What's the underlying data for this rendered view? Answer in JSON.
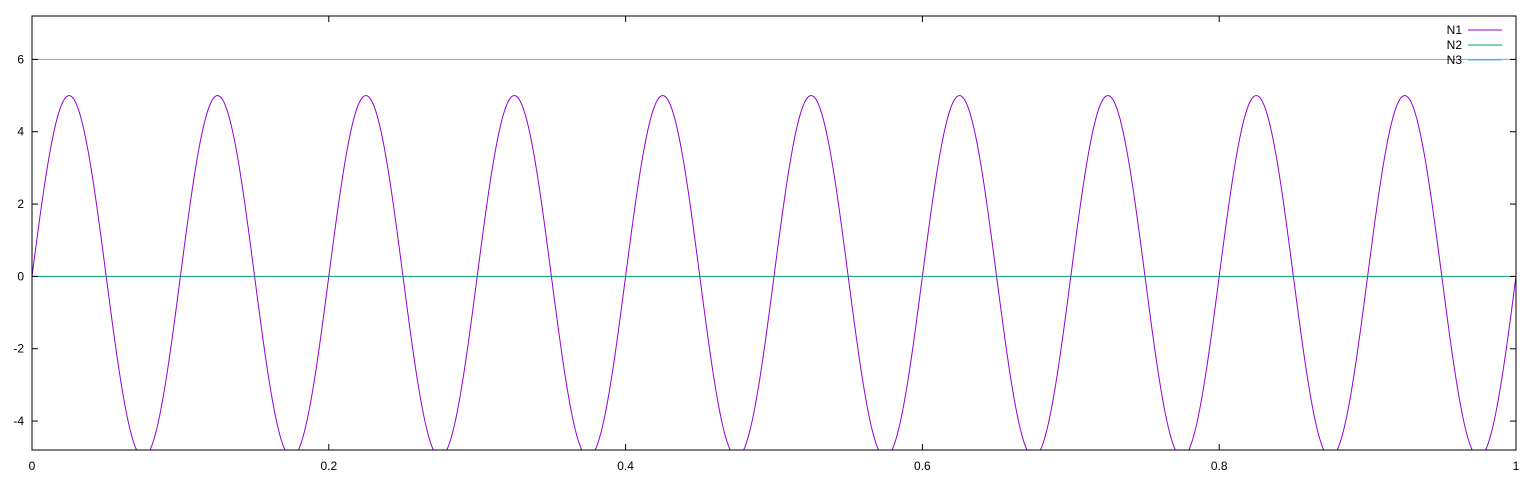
{
  "chart_data": {
    "type": "line",
    "title": "",
    "xlabel": "",
    "ylabel": "",
    "xlim": [
      0,
      1
    ],
    "ylim": [
      -4.8,
      7.2
    ],
    "x_ticks": [
      0,
      0.2,
      0.4,
      0.6,
      0.8,
      1
    ],
    "x_tick_labels": [
      "0",
      "0.2",
      "0.4",
      "0.6",
      "0.8",
      "1"
    ],
    "y_ticks": [
      -4,
      -2,
      0,
      2,
      4,
      6
    ],
    "y_tick_labels": [
      "-4",
      "-2",
      "0",
      "2",
      "4",
      "6"
    ],
    "grid": false,
    "legend_position": "top-right",
    "series": [
      {
        "name": "N1",
        "color": "#9400d3",
        "function": "y = 5*sin(2*pi*10*x)",
        "amplitude": 5,
        "frequency": 10,
        "offset": 0,
        "x": [
          0,
          0.025,
          0.05,
          0.075,
          0.1,
          0.125,
          0.15,
          0.175,
          0.2,
          0.225,
          0.25,
          0.275,
          0.3,
          0.325,
          0.35,
          0.375,
          0.4,
          0.425,
          0.45,
          0.475,
          0.5,
          0.525,
          0.55,
          0.575,
          0.6,
          0.625,
          0.65,
          0.675,
          0.7,
          0.725,
          0.75,
          0.775,
          0.8,
          0.825,
          0.85,
          0.875,
          0.9,
          0.925,
          0.95,
          0.975,
          1
        ],
        "values": [
          0,
          5,
          0,
          -5,
          0,
          5,
          0,
          -5,
          0,
          5,
          0,
          -5,
          0,
          5,
          0,
          -5,
          0,
          5,
          0,
          -5,
          0,
          5,
          0,
          -5,
          0,
          5,
          0,
          -5,
          0,
          5,
          0,
          -5,
          0,
          5,
          0,
          -5,
          0,
          5,
          0,
          -5,
          0
        ]
      },
      {
        "name": "N2",
        "color": "#009e73",
        "x": [
          0,
          1
        ],
        "values": [
          0,
          0
        ]
      },
      {
        "name": "N3",
        "color": "#56b4e9",
        "x": [
          0,
          1
        ],
        "values": [
          6,
          6
        ]
      }
    ]
  }
}
